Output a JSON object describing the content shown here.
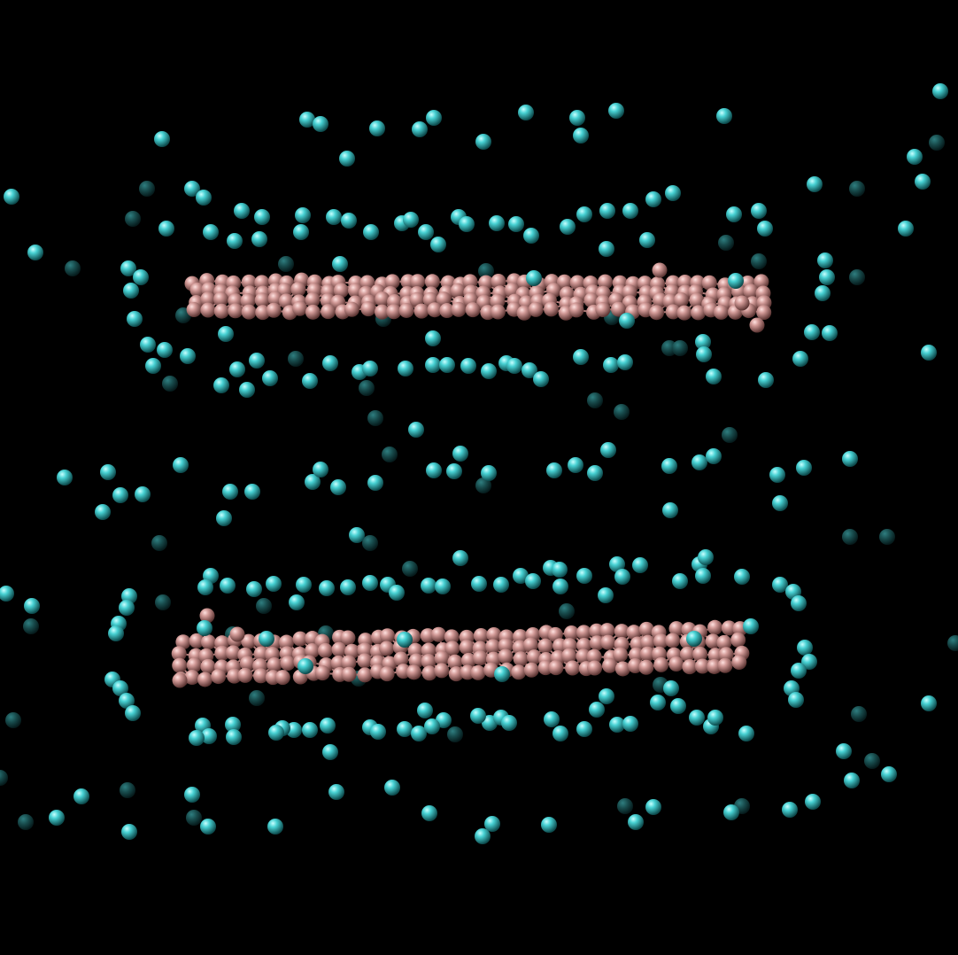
{
  "scene": {
    "background_color": "#000000",
    "carbon_color": "#c98f8c",
    "carbon_bond_color": "#b07c79",
    "ion_color": "#3fc7c9"
  }
}
